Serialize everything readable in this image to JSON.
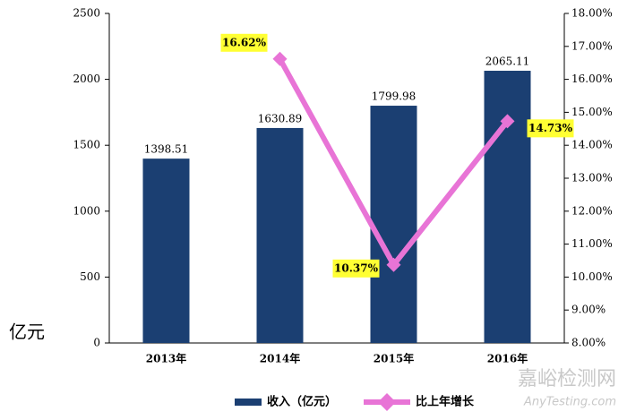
{
  "chart_data": {
    "type": "bar_line",
    "categories": [
      "2013年",
      "2014年",
      "2015年",
      "2016年"
    ],
    "ylabel": "亿元",
    "series": [
      {
        "name": "收入（亿元）",
        "type": "bar",
        "color": "#1b3f72",
        "values": [
          1398.51,
          1630.89,
          1799.98,
          2065.11
        ]
      },
      {
        "name": "比上年增长",
        "type": "line",
        "axis": "y2",
        "color": "#e874d6",
        "values": [
          null,
          16.62,
          10.37,
          14.73
        ],
        "value_labels": [
          null,
          "16.62%",
          "10.37%",
          "14.73%"
        ]
      }
    ],
    "ylim": [
      0,
      2500
    ],
    "yticks": [
      0,
      500,
      1000,
      1500,
      2000,
      2500
    ],
    "y2lim": [
      8,
      18
    ],
    "y2ticks": [
      {
        "value": 8,
        "label": "8.00%"
      },
      {
        "value": 9,
        "label": "9.00%"
      },
      {
        "value": 10,
        "label": "10.00%"
      },
      {
        "value": 11,
        "label": "11.00%"
      },
      {
        "value": 12,
        "label": "12.00%"
      },
      {
        "value": 13,
        "label": "13.00%"
      },
      {
        "value": 14,
        "label": "14.00%"
      },
      {
        "value": 15,
        "label": "15.00%"
      },
      {
        "value": 16,
        "label": "16.00%"
      },
      {
        "value": 17,
        "label": "17.00%"
      },
      {
        "value": 18,
        "label": "18.00%"
      }
    ],
    "legend": "bottom"
  },
  "watermark": [
    "嘉峪检测网",
    "AnyTesting.com"
  ]
}
